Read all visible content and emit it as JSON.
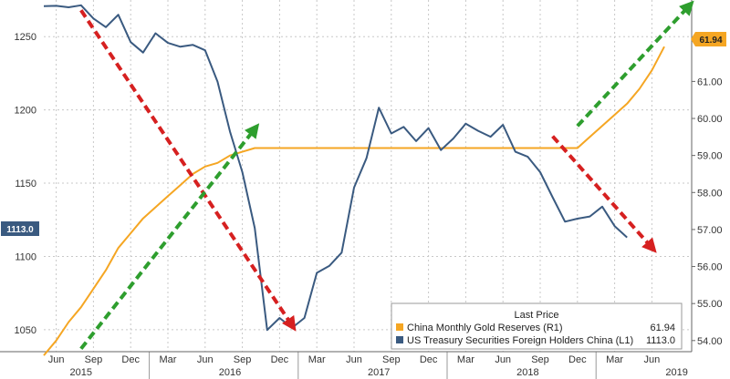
{
  "chart_data": {
    "type": "line",
    "title": "",
    "x_labels": [
      "Jun",
      "Sep",
      "Dec",
      "Mar",
      "Jun",
      "Sep",
      "Dec",
      "Mar",
      "Jun",
      "Sep",
      "Dec",
      "Mar",
      "Jun",
      "Sep",
      "Dec",
      "Mar",
      "Jun"
    ],
    "year_labels": [
      "2015",
      "2016",
      "2017",
      "2018",
      "2019"
    ],
    "y_left": {
      "ylim": [
        1035,
        1275
      ],
      "ticks": [
        "1050",
        "1100",
        "1150",
        "1200",
        "1250"
      ]
    },
    "y_right": {
      "ylim": [
        53.7,
        63.2
      ],
      "ticks": [
        "54.00",
        "55.00",
        "56.00",
        "57.00",
        "58.00",
        "59.00",
        "60.00",
        "61.00"
      ]
    },
    "series": [
      {
        "name": "China Monthly Gold Reserves (R1)",
        "axis": "right",
        "color": "#f5a623",
        "last_value": "61.94",
        "values": [
          53.6,
          54.0,
          54.5,
          54.9,
          55.4,
          55.9,
          56.5,
          56.9,
          57.3,
          57.6,
          57.9,
          58.2,
          58.5,
          58.7,
          58.8,
          59.0,
          59.1,
          59.2,
          59.2,
          59.2,
          59.2,
          59.2,
          59.2,
          59.2,
          59.2,
          59.2,
          59.2,
          59.2,
          59.2,
          59.2,
          59.2,
          59.2,
          59.2,
          59.2,
          59.2,
          59.2,
          59.2,
          59.2,
          59.2,
          59.2,
          59.2,
          59.2,
          59.2,
          59.2,
          59.5,
          59.8,
          60.1,
          60.4,
          60.8,
          61.3,
          61.94
        ]
      },
      {
        "name": "US Treasury Securities Foreign Holders China",
        "axis": "left",
        "color": "#3a5a80",
        "last_value": "1113.0",
        "values": [
          1270.8,
          1271.0,
          1270.0,
          1271.4,
          1262.4,
          1256.5,
          1264.9,
          1246.3,
          1239.1,
          1252.3,
          1245.7,
          1243.1,
          1244.4,
          1240.7,
          1219.3,
          1185.3,
          1157.5,
          1119.3,
          1049.8,
          1058.0,
          1051.2,
          1058.0,
          1088.8,
          1093.5,
          1102.6,
          1147.0,
          1167.0,
          1201.5,
          1183.9,
          1188.4,
          1178.7,
          1187.6,
          1172.6,
          1180.5,
          1190.6,
          1185.7,
          1181.7,
          1189.8,
          1171.4,
          1168.0,
          1157.5,
          1140.4,
          1123.7,
          1125.8,
          1127.3,
          1134.0,
          1120.7,
          1113.0
        ]
      }
    ],
    "legend": {
      "title": "Last Price",
      "position": "bottom-right",
      "items": [
        {
          "label": "China Monthly Gold Reserves  (R1)",
          "value": "61.94",
          "color": "#f5a623"
        },
        {
          "label": "US Treasury Securities Foreign Holders China  (L1)",
          "value": "1113.0",
          "color": "#3a5a80"
        }
      ]
    },
    "annotations": [
      {
        "type": "arrow",
        "color": "red",
        "from": {
          "month": 3,
          "left": 1268
        },
        "to": {
          "month": 20,
          "left": 1053
        }
      },
      {
        "type": "arrow",
        "color": "green",
        "from": {
          "month": 3,
          "left": 1037
        },
        "to": {
          "month": 17,
          "left": 1187
        }
      },
      {
        "type": "arrow",
        "color": "red",
        "from": {
          "month": 41,
          "left": 1182
        },
        "to": {
          "month": 49,
          "left": 1106
        }
      },
      {
        "type": "arrow",
        "color": "green",
        "from": {
          "month": 43,
          "left": 1189
        },
        "to": {
          "month": 52,
          "left": 1271
        }
      }
    ]
  }
}
